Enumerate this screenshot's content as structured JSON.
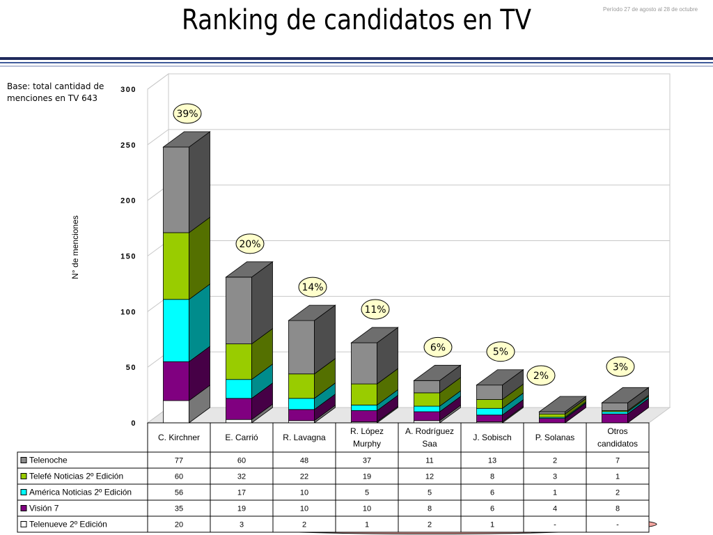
{
  "header": {
    "period": "Período 27 de agosto al 28 de octubre",
    "title": "Ranking de candidatos en TV"
  },
  "note": "Base: total cantidad de menciones en TV 643",
  "chart_data": {
    "type": "bar",
    "stacked": true,
    "three_d": true,
    "ylabel": "N° de menciones",
    "ylim": [
      0,
      300
    ],
    "yticks": [
      "0",
      "50",
      "100",
      "150",
      "200",
      "250",
      "300"
    ],
    "grid": true,
    "categories": [
      "C. Kirchner",
      "E. Carrió",
      "R. Lavagna",
      "R. López Murphy",
      "A. Rodríguez Saa",
      "J. Sobisch",
      "P. Solanas",
      "Otros candidatos"
    ],
    "category_lines": [
      [
        "C. Kirchner"
      ],
      [
        "E. Carrió"
      ],
      [
        "R. Lavagna"
      ],
      [
        "R. López",
        "Murphy"
      ],
      [
        "A. Rodríguez",
        "Saa"
      ],
      [
        "J. Sobisch"
      ],
      [
        "P. Solanas"
      ],
      [
        "Otros",
        "candidatos"
      ]
    ],
    "percent_labels": [
      "39%",
      "20%",
      "14%",
      "11%",
      "6%",
      "5%",
      "2%",
      "3%"
    ],
    "series": [
      {
        "name": "Telenoche",
        "color": "#8c8c8c",
        "values": [
          77,
          60,
          48,
          37,
          11,
          13,
          2,
          7
        ],
        "display": [
          "77",
          "60",
          "48",
          "37",
          "11",
          "13",
          "2",
          "7"
        ]
      },
      {
        "name": "Telefé Noticias 2º Edición",
        "color": "#99cc00",
        "values": [
          60,
          32,
          22,
          19,
          12,
          8,
          3,
          1
        ],
        "display": [
          "60",
          "32",
          "22",
          "19",
          "12",
          "8",
          "3",
          "1"
        ]
      },
      {
        "name": "América Noticias 2º Edición",
        "color": "#00ffff",
        "values": [
          56,
          17,
          10,
          5,
          5,
          6,
          1,
          2
        ],
        "display": [
          "56",
          "17",
          "10",
          "5",
          "5",
          "6",
          "1",
          "2"
        ]
      },
      {
        "name": "Visión 7",
        "color": "#800080",
        "values": [
          35,
          19,
          10,
          10,
          8,
          6,
          4,
          8
        ],
        "display": [
          "35",
          "19",
          "10",
          "10",
          "8",
          "6",
          "4",
          "8"
        ]
      },
      {
        "name": "Telenueve 2º Edición",
        "color": "#ffffff",
        "values": [
          20,
          3,
          2,
          1,
          2,
          1,
          0,
          0
        ],
        "display": [
          "20",
          "3",
          "2",
          "1",
          "2",
          "1",
          "-",
          "-"
        ]
      }
    ]
  }
}
